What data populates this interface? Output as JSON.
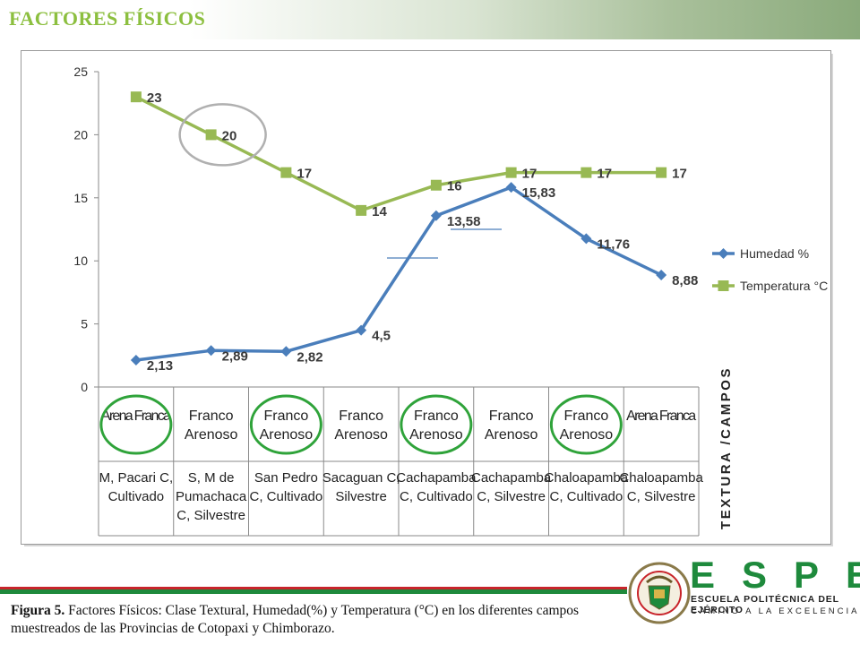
{
  "header": {
    "title": "FACTORES FÍSICOS"
  },
  "chart_data": {
    "type": "line",
    "ylim": [
      0,
      25
    ],
    "yticks": [
      0,
      5,
      10,
      15,
      20,
      25
    ],
    "grid": false,
    "legend_position": "right",
    "categories": [
      {
        "texture": "Arena Franca",
        "field": [
          "M, Pacari  C,",
          "Cultivado"
        ]
      },
      {
        "texture": "Franco Arenoso",
        "field": [
          "S, M de",
          "Pumachaca",
          "C, Silvestre"
        ]
      },
      {
        "texture": "Franco Arenoso",
        "field": [
          "San Pedro",
          "C, Cultivado"
        ]
      },
      {
        "texture": "Franco Arenoso",
        "field": [
          "Sacaguan C,",
          "Silvestre"
        ]
      },
      {
        "texture": "Franco Arenoso",
        "field": [
          "Cachapamba",
          "C, Cultivado"
        ]
      },
      {
        "texture": "Franco Arenoso",
        "field": [
          "Cachapamba",
          "C, Silvestre"
        ]
      },
      {
        "texture": "Franco Arenoso",
        "field": [
          "Chaloapamba",
          "C, Cultivado"
        ]
      },
      {
        "texture": "Arena Franca",
        "field": [
          "Chaloapamba",
          "C, Silvestre"
        ]
      }
    ],
    "series": [
      {
        "name": "Humedad %",
        "color": "#4a7ebb",
        "marker": "diamond",
        "values": [
          2.13,
          2.89,
          2.82,
          4.5,
          13.58,
          15.83,
          11.76,
          8.88
        ],
        "labels": [
          "2,13",
          "2,89",
          "2,82",
          "4,5",
          "13,58",
          "15,83",
          "11,76",
          "8,88"
        ]
      },
      {
        "name": "Temperatura °C",
        "color": "#98b954",
        "marker": "square",
        "values": [
          23,
          20,
          17,
          14,
          16,
          17,
          17,
          17
        ],
        "labels": [
          "23",
          "20",
          "17",
          "14",
          "16",
          "17",
          "17",
          "17"
        ]
      }
    ],
    "axis_side_label": "TEXTURA /CAMPOS",
    "highlight_circles": {
      "gray_on_point": {
        "series": 1,
        "index": 1
      },
      "green_textures": [
        0,
        2,
        4,
        6
      ]
    }
  },
  "caption": {
    "label": "Figura 5.",
    "text": " Factores Físicos: Clase Textural, Humedad(%) y Temperatura (°C) en los diferentes campos muestreados de las Provincias de Cotopaxi y Chimborazo."
  },
  "logo": {
    "letters": "ESPE",
    "line1": "ESCUELA POLITÉCNICA DEL EJÉRCITO",
    "line2": "CAMINO A LA EXCELENCIA",
    "colors": {
      "green": "#1e8a3c",
      "red": "#c8242b"
    }
  }
}
